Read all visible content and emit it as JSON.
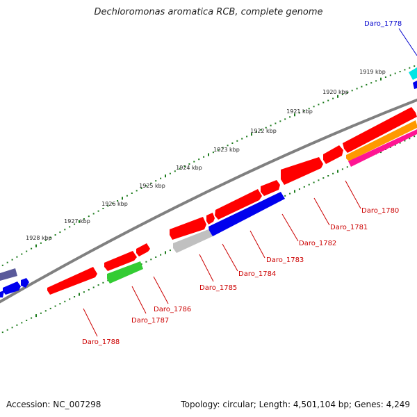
{
  "title": "Dechloromonas aromatica RCB, complete genome",
  "footer": {
    "accession": "Accession: NC_007298",
    "summary": "Topology: circular; Length: 4,501,104 bp; Genes: 4,249"
  },
  "scale_labels": [
    "1919 kbp",
    "1920 kbp",
    "1921 kbp",
    "1922 kbp",
    "1923 kbp",
    "1924 kbp",
    "1925 kbp",
    "1926 kbp",
    "1927 kbp",
    "1928 kbp"
  ],
  "gene_labels": [
    "Daro_1778",
    "Daro_1780",
    "Daro_1781",
    "Daro_1782",
    "Daro_1783",
    "Daro_1784",
    "Daro_1785",
    "Daro_1786",
    "Daro_1787",
    "Daro_1788"
  ],
  "colors": {
    "backbone": "#808080",
    "forward_gene": "#ff0000",
    "label_red": "#cc0000",
    "label_blue": "#0000cc",
    "tick_green": "#1a7a1a",
    "cyan": "#00e5e5",
    "blue": "#0000ee",
    "green": "#33cc33",
    "gray": "#c0c0c0",
    "orange": "#ff9900",
    "magenta": "#ff1493",
    "slate": "#5a5a9a"
  }
}
